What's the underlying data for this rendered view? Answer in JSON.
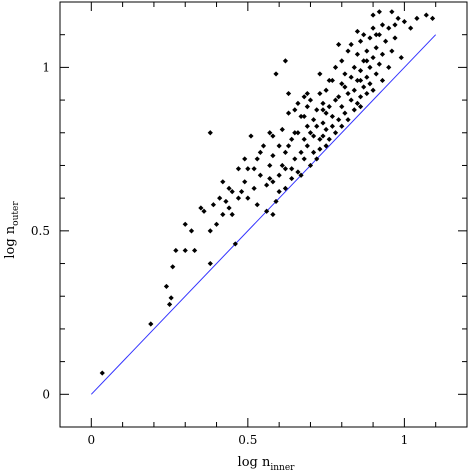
{
  "chart_data": {
    "type": "scatter",
    "xlabel": {
      "base": "log n",
      "sub": "inner"
    },
    "ylabel": {
      "base": "log n",
      "sub": "outer"
    },
    "xlim": [
      -0.1,
      1.2
    ],
    "ylim": [
      -0.1,
      1.2
    ],
    "xticks": [
      {
        "value": 0,
        "label": "0"
      },
      {
        "value": 0.5,
        "label": "0.5"
      },
      {
        "value": 1,
        "label": "1"
      }
    ],
    "yticks": [
      {
        "value": 0,
        "label": "0"
      },
      {
        "value": 0.5,
        "label": "0.5"
      },
      {
        "value": 1,
        "label": "1"
      }
    ],
    "grid": false,
    "marker_color": "#000000",
    "reference_line": {
      "name": "y = x",
      "x": [
        0,
        1.1
      ],
      "y": [
        0,
        1.1
      ],
      "color": "#3333ff"
    },
    "points": [
      [
        0.035,
        0.065
      ],
      [
        0.19,
        0.215
      ],
      [
        0.24,
        0.33
      ],
      [
        0.25,
        0.275
      ],
      [
        0.255,
        0.295
      ],
      [
        0.26,
        0.39
      ],
      [
        0.27,
        0.44
      ],
      [
        0.3,
        0.52
      ],
      [
        0.3,
        0.44
      ],
      [
        0.32,
        0.5
      ],
      [
        0.33,
        0.44
      ],
      [
        0.35,
        0.57
      ],
      [
        0.36,
        0.56
      ],
      [
        0.38,
        0.5
      ],
      [
        0.38,
        0.8
      ],
      [
        0.38,
        0.4
      ],
      [
        0.39,
        0.58
      ],
      [
        0.4,
        0.52
      ],
      [
        0.41,
        0.6
      ],
      [
        0.42,
        0.55
      ],
      [
        0.43,
        0.59
      ],
      [
        0.44,
        0.63
      ],
      [
        0.45,
        0.55
      ],
      [
        0.45,
        0.62
      ],
      [
        0.46,
        0.46
      ],
      [
        0.47,
        0.69
      ],
      [
        0.48,
        0.62
      ],
      [
        0.49,
        0.72
      ],
      [
        0.5,
        0.6
      ],
      [
        0.5,
        0.69
      ],
      [
        0.51,
        0.79
      ],
      [
        0.52,
        0.63
      ],
      [
        0.53,
        0.72
      ],
      [
        0.53,
        0.58
      ],
      [
        0.54,
        0.67
      ],
      [
        0.55,
        0.76
      ],
      [
        0.56,
        0.56
      ],
      [
        0.56,
        0.64
      ],
      [
        0.57,
        0.7
      ],
      [
        0.57,
        0.8
      ],
      [
        0.58,
        0.55
      ],
      [
        0.58,
        0.65
      ],
      [
        0.58,
        0.73
      ],
      [
        0.59,
        0.98
      ],
      [
        0.59,
        0.59
      ],
      [
        0.6,
        0.67
      ],
      [
        0.6,
        0.76
      ],
      [
        0.6,
        0.62
      ],
      [
        0.61,
        0.7
      ],
      [
        0.61,
        0.81
      ],
      [
        0.62,
        0.74
      ],
      [
        0.62,
        1.02
      ],
      [
        0.62,
        0.63
      ],
      [
        0.63,
        0.76
      ],
      [
        0.63,
        0.86
      ],
      [
        0.64,
        0.69
      ],
      [
        0.64,
        0.78
      ],
      [
        0.64,
        0.66
      ],
      [
        0.65,
        0.72
      ],
      [
        0.65,
        0.87
      ],
      [
        0.66,
        0.8
      ],
      [
        0.66,
        0.89
      ],
      [
        0.66,
        0.68
      ],
      [
        0.67,
        0.74
      ],
      [
        0.67,
        0.85
      ],
      [
        0.67,
        0.67
      ],
      [
        0.68,
        0.78
      ],
      [
        0.68,
        0.91
      ],
      [
        0.68,
        0.72
      ],
      [
        0.69,
        0.82
      ],
      [
        0.69,
        0.76
      ],
      [
        0.69,
        0.88
      ],
      [
        0.7,
        0.7
      ],
      [
        0.7,
        0.8
      ],
      [
        0.7,
        0.9
      ],
      [
        0.71,
        0.74
      ],
      [
        0.71,
        0.84
      ],
      [
        0.71,
        0.79
      ],
      [
        0.72,
        0.72
      ],
      [
        0.72,
        0.87
      ],
      [
        0.72,
        0.82
      ],
      [
        0.73,
        0.78
      ],
      [
        0.73,
        0.92
      ],
      [
        0.73,
        0.75
      ],
      [
        0.74,
        0.83
      ],
      [
        0.74,
        0.79
      ],
      [
        0.74,
        0.89
      ],
      [
        0.75,
        0.76
      ],
      [
        0.75,
        0.86
      ],
      [
        0.75,
        0.81
      ],
      [
        0.75,
        0.93
      ],
      [
        0.76,
        0.78
      ],
      [
        0.76,
        0.88
      ],
      [
        0.77,
        0.82
      ],
      [
        0.77,
        0.96
      ],
      [
        0.77,
        0.85
      ],
      [
        0.78,
        0.8
      ],
      [
        0.78,
        0.9
      ],
      [
        0.78,
        1.0
      ],
      [
        0.79,
        0.84
      ],
      [
        0.79,
        0.91
      ],
      [
        0.8,
        0.82
      ],
      [
        0.8,
        0.95
      ],
      [
        0.8,
        0.88
      ],
      [
        0.8,
        1.02
      ],
      [
        0.81,
        0.86
      ],
      [
        0.81,
        0.98
      ],
      [
        0.82,
        0.92
      ],
      [
        0.82,
        1.05
      ],
      [
        0.82,
        0.84
      ],
      [
        0.83,
        0.9
      ],
      [
        0.83,
        0.97
      ],
      [
        0.83,
        1.07
      ],
      [
        0.84,
        0.87
      ],
      [
        0.84,
        0.93
      ],
      [
        0.84,
        1.0
      ],
      [
        0.85,
        0.89
      ],
      [
        0.85,
        0.96
      ],
      [
        0.85,
        1.04
      ],
      [
        0.86,
        0.91
      ],
      [
        0.86,
        0.99
      ],
      [
        0.86,
        1.08
      ],
      [
        0.86,
        0.88
      ],
      [
        0.87,
        0.94
      ],
      [
        0.87,
        1.02
      ],
      [
        0.87,
        1.1
      ],
      [
        0.88,
        0.92
      ],
      [
        0.88,
        0.97
      ],
      [
        0.88,
        1.05
      ],
      [
        0.89,
        0.95
      ],
      [
        0.89,
        1.0
      ],
      [
        0.89,
        1.09
      ],
      [
        0.9,
        0.93
      ],
      [
        0.9,
        1.03
      ],
      [
        0.9,
        1.12
      ],
      [
        0.9,
        1.16
      ],
      [
        0.91,
        0.98
      ],
      [
        0.91,
        1.06
      ],
      [
        0.92,
        1.1
      ],
      [
        0.92,
        1.01
      ],
      [
        0.93,
        0.96
      ],
      [
        0.93,
        1.13
      ],
      [
        0.93,
        1.04
      ],
      [
        0.94,
        1.08
      ],
      [
        0.95,
        1.0
      ],
      [
        0.95,
        1.12
      ],
      [
        0.96,
        1.05
      ],
      [
        0.96,
        1.17
      ],
      [
        0.97,
        1.09
      ],
      [
        0.98,
        1.15
      ],
      [
        0.99,
        1.03
      ],
      [
        1.0,
        1.14
      ],
      [
        1.02,
        1.12
      ],
      [
        1.04,
        1.15
      ],
      [
        1.07,
        1.16
      ],
      [
        1.09,
        1.15
      ],
      [
        0.92,
        1.17
      ],
      [
        0.97,
        1.13
      ],
      [
        0.54,
        0.74
      ],
      [
        0.49,
        0.65
      ],
      [
        0.44,
        0.57
      ],
      [
        0.42,
        0.65
      ],
      [
        0.63,
        0.92
      ],
      [
        0.73,
        0.98
      ],
      [
        0.79,
        1.07
      ],
      [
        0.85,
        1.11
      ],
      [
        0.86,
        0.96
      ],
      [
        0.76,
        0.96
      ],
      [
        0.69,
        0.92
      ],
      [
        0.65,
        0.8
      ],
      [
        0.58,
        0.79
      ],
      [
        0.57,
        0.66
      ],
      [
        0.52,
        0.69
      ],
      [
        0.47,
        0.6
      ],
      [
        0.62,
        0.69
      ],
      [
        0.68,
        0.85
      ],
      [
        0.74,
        0.87
      ],
      [
        0.81,
        0.94
      ],
      [
        0.88,
        1.02
      ],
      [
        0.91,
        1.1
      ]
    ]
  }
}
